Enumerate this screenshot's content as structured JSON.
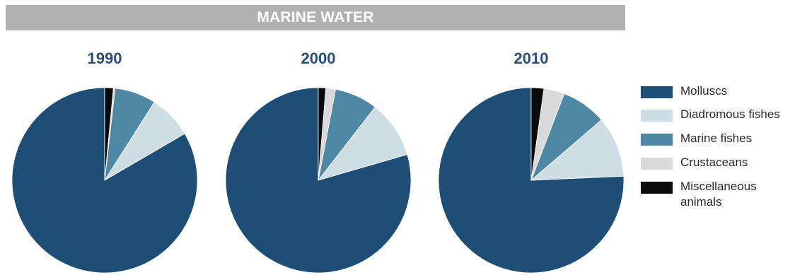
{
  "banner": {
    "title": "MARINE WATER"
  },
  "legend": [
    {
      "label": "Molluscs",
      "color": "#1d4e75"
    },
    {
      "label": "Diadromous fishes",
      "color": "#cfdde5"
    },
    {
      "label": "Marine fishes",
      "color": "#4e88a4"
    },
    {
      "label": "Crustaceans",
      "color": "#d9d9d9"
    },
    {
      "label": "Miscellaneous animals",
      "color": "#0a0a0a"
    }
  ],
  "chart_data": [
    {
      "type": "pie",
      "title": "1990",
      "categories": [
        "Molluscs",
        "Diadromous fishes",
        "Marine fishes",
        "Crustaceans",
        "Miscellaneous animals"
      ],
      "values": [
        83.4,
        7.6,
        7.2,
        0.3,
        1.5
      ]
    },
    {
      "type": "pie",
      "title": "2000",
      "categories": [
        "Molluscs",
        "Diadromous fishes",
        "Marine fishes",
        "Crustaceans",
        "Miscellaneous animals"
      ],
      "values": [
        79.5,
        10.0,
        7.5,
        1.7,
        1.3
      ]
    },
    {
      "type": "pie",
      "title": "2010",
      "categories": [
        "Molluscs",
        "Diadromous fishes",
        "Marine fishes",
        "Crustaceans",
        "Miscellaneous animals"
      ],
      "values": [
        75.7,
        10.6,
        7.9,
        3.6,
        2.2
      ]
    }
  ]
}
